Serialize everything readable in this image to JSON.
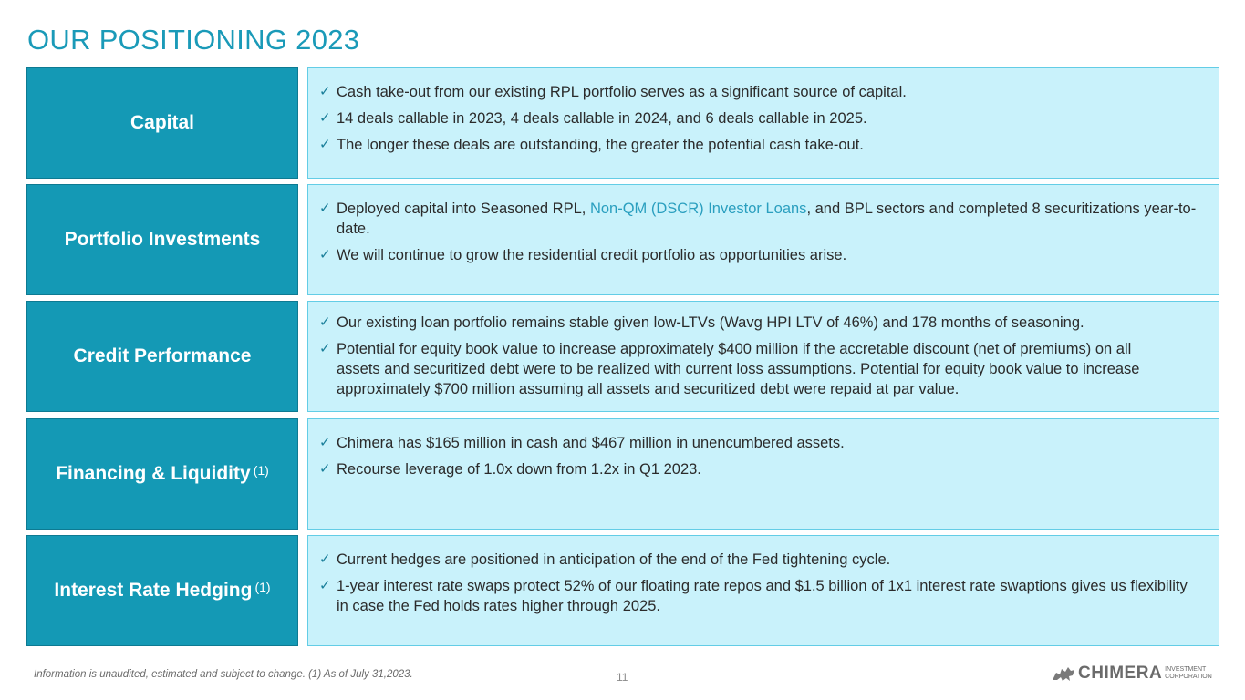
{
  "title": "OUR POSITIONING 2023",
  "sections": [
    {
      "label": "Capital",
      "sup": "",
      "bullets": [
        [
          "Cash take-out from our existing RPL portfolio serves as a significant source of capital."
        ],
        [
          "14 deals callable in 2023, 4 deals callable in 2024, and 6 deals callable in 2025."
        ],
        [
          "The longer these deals are outstanding, the greater the potential cash take-out."
        ]
      ]
    },
    {
      "label": "Portfolio Investments",
      "sup": "",
      "bullets": [
        [
          "Deployed capital into Seasoned RPL, ",
          "Non-QM (DSCR) Investor Loans",
          ", and BPL sectors and completed 8 securitizations year-to-date."
        ],
        [
          "We will continue to grow the residential credit portfolio as opportunities arise."
        ]
      ]
    },
    {
      "label": "Credit Performance",
      "sup": "",
      "bullets": [
        [
          "Our existing loan portfolio remains stable given low-LTVs (Wavg HPI LTV of 46%) and 178 months of seasoning."
        ],
        [
          "Potential for equity book value to increase approximately $400 million if the accretable discount (net of premiums) on all assets and securitized debt were to be realized with current loss assumptions. Potential for equity book value to increase approximately $700 million assuming all assets and securitized debt were repaid at par value."
        ]
      ]
    },
    {
      "label": "Financing & Liquidity",
      "sup": "(1)",
      "bullets": [
        [
          "Chimera has $165 million in cash and $467 million in unencumbered assets."
        ],
        [
          "Recourse leverage of 1.0x down from 1.2x in Q1 2023."
        ]
      ]
    },
    {
      "label": "Interest Rate Hedging",
      "sup": "(1)",
      "bullets": [
        [
          "Current hedges are positioned in anticipation of the end of the Fed tightening cycle."
        ],
        [
          "1-year interest rate swaps protect 52% of our floating rate repos and $1.5 billion of 1x1 interest rate swaptions gives us flexibility in case the Fed holds rates higher through 2025."
        ]
      ]
    }
  ],
  "footnote": "Information is unaudited, estimated and subject to change. (1) As of July 31,2023.",
  "page_number": "11",
  "logo": {
    "icon": "chimera-mark-icon",
    "word": "CHIMERA",
    "sub_1": "INVESTMENT",
    "sub_2": "CORPORATION"
  },
  "colors": {
    "accent": "#1a9ab8",
    "label_bg": "#1499b5",
    "content_bg": "#c9f2fb",
    "highlight": "#2a9fbf"
  }
}
